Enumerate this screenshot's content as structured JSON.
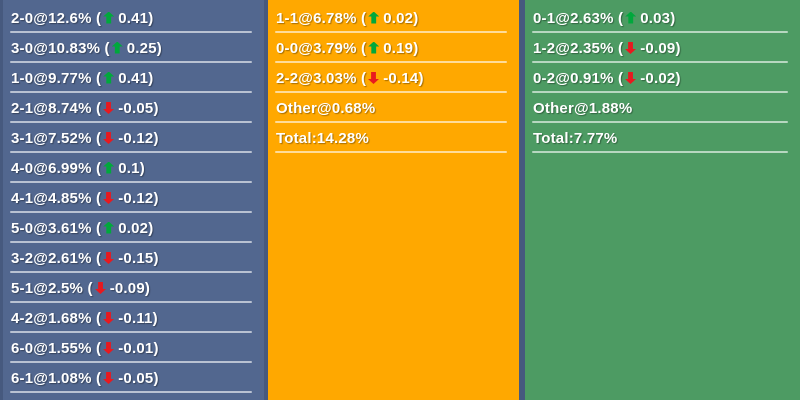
{
  "colors": {
    "page_bg": "#46597e",
    "home_bg": "#52678f",
    "draw_bg": "#ffa800",
    "away_bg": "#4d9b63",
    "divider_line": "rgba(255,255,255,0.6)",
    "up_arrow": "#00a83c",
    "down_arrow": "#e8191f",
    "text": "#ffffff"
  },
  "icons": {
    "up": "trend-up-icon",
    "down": "trend-down-icon"
  },
  "columns": [
    {
      "name": "home-win-scorelines-panel",
      "rows": [
        {
          "label": "2-0",
          "sep": " @ ",
          "pct": "12.6%",
          "trend": "up",
          "delta": "0.41"
        },
        {
          "label": "3-0",
          "sep": " @ ",
          "pct": "10.83%",
          "trend": "up",
          "delta": "0.25"
        },
        {
          "label": "1-0",
          "sep": " @ ",
          "pct": "9.77%",
          "trend": "up",
          "delta": "0.41"
        },
        {
          "label": "2-1",
          "sep": " @ ",
          "pct": "8.74%",
          "trend": "down",
          "delta": "-0.05"
        },
        {
          "label": "3-1",
          "sep": " @ ",
          "pct": "7.52%",
          "trend": "down",
          "delta": "-0.12"
        },
        {
          "label": "4-0",
          "sep": " @ ",
          "pct": "6.99%",
          "trend": "up",
          "delta": "0.1"
        },
        {
          "label": "4-1",
          "sep": " @ ",
          "pct": "4.85%",
          "trend": "down",
          "delta": "-0.12"
        },
        {
          "label": "5-0",
          "sep": " @ ",
          "pct": "3.61%",
          "trend": "up",
          "delta": "0.02"
        },
        {
          "label": "3-2",
          "sep": " @ ",
          "pct": "2.61%",
          "trend": "down",
          "delta": "-0.15"
        },
        {
          "label": "5-1",
          "sep": " @ ",
          "pct": "2.5%",
          "trend": "down",
          "delta": "-0.09"
        },
        {
          "label": "4-2",
          "sep": " @ ",
          "pct": "1.68%",
          "trend": "down",
          "delta": "-0.11"
        },
        {
          "label": "6-0",
          "sep": " @ ",
          "pct": "1.55%",
          "trend": "down",
          "delta": "-0.01"
        },
        {
          "label": "6-1",
          "sep": " @ ",
          "pct": "1.08%",
          "trend": "down",
          "delta": "-0.05"
        }
      ]
    },
    {
      "name": "draw-scorelines-panel",
      "rows": [
        {
          "label": "1-1",
          "sep": " @ ",
          "pct": "6.78%",
          "trend": "up",
          "delta": "0.02"
        },
        {
          "label": "0-0",
          "sep": " @ ",
          "pct": "3.79%",
          "trend": "up",
          "delta": "0.19"
        },
        {
          "label": "2-2",
          "sep": " @ ",
          "pct": "3.03%",
          "trend": "down",
          "delta": "-0.14"
        },
        {
          "label": "Other",
          "sep": " @ ",
          "pct": "0.68%",
          "trend": "none",
          "delta": null
        },
        {
          "label": "Total",
          "sep": " : ",
          "pct": "14.28%",
          "trend": "none",
          "delta": null
        }
      ]
    },
    {
      "name": "away-win-scorelines-panel",
      "rows": [
        {
          "label": "0-1",
          "sep": " @ ",
          "pct": "2.63%",
          "trend": "up",
          "delta": "0.03"
        },
        {
          "label": "1-2",
          "sep": " @ ",
          "pct": "2.35%",
          "trend": "down",
          "delta": "-0.09"
        },
        {
          "label": "0-2",
          "sep": " @ ",
          "pct": "0.91%",
          "trend": "down",
          "delta": "-0.02"
        },
        {
          "label": "Other",
          "sep": " @ ",
          "pct": "1.88%",
          "trend": "none",
          "delta": null
        },
        {
          "label": "Total",
          "sep": " : ",
          "pct": "7.77%",
          "trend": "none",
          "delta": null
        }
      ]
    }
  ]
}
